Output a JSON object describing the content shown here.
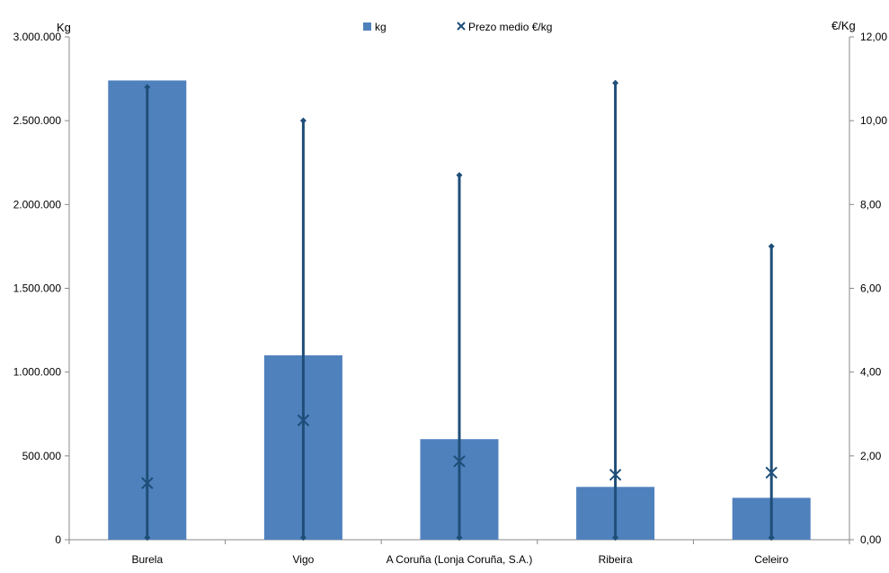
{
  "chart_data": {
    "type": "bar",
    "categories": [
      "Burela",
      "Vigo",
      "A Coruña (Lonja Coruña, S.A.)",
      "Ribeira",
      "Celeiro"
    ],
    "series": [
      {
        "name": "kg",
        "type": "bar",
        "axis": "left",
        "values": [
          2740000,
          1100000,
          600000,
          315000,
          250000
        ]
      },
      {
        "name": "Prezo medio €/kg",
        "type": "scatter-range",
        "axis": "right",
        "values": [
          1.35,
          2.85,
          1.87,
          1.55,
          1.6
        ],
        "min": [
          0.05,
          0.05,
          0.05,
          0.05,
          0.05
        ],
        "max": [
          10.8,
          10.0,
          8.7,
          10.9,
          7.0
        ]
      }
    ],
    "y_left": {
      "label": "Kg",
      "range": [
        0,
        3000000
      ],
      "ticks": [
        "0",
        "500.000",
        "1.000.000",
        "1.500.000",
        "2.000.000",
        "2.500.000",
        "3.000.000"
      ]
    },
    "y_right": {
      "label": "€/Kg",
      "range": [
        0,
        12
      ],
      "ticks": [
        "0,00",
        "2,00",
        "4,00",
        "6,00",
        "8,00",
        "10,00",
        "12,00"
      ]
    },
    "grid": false,
    "legend_position": "top-center",
    "colors": {
      "bar": "#4f81bd",
      "price": "#1f4e79",
      "axis": "#888888"
    }
  }
}
